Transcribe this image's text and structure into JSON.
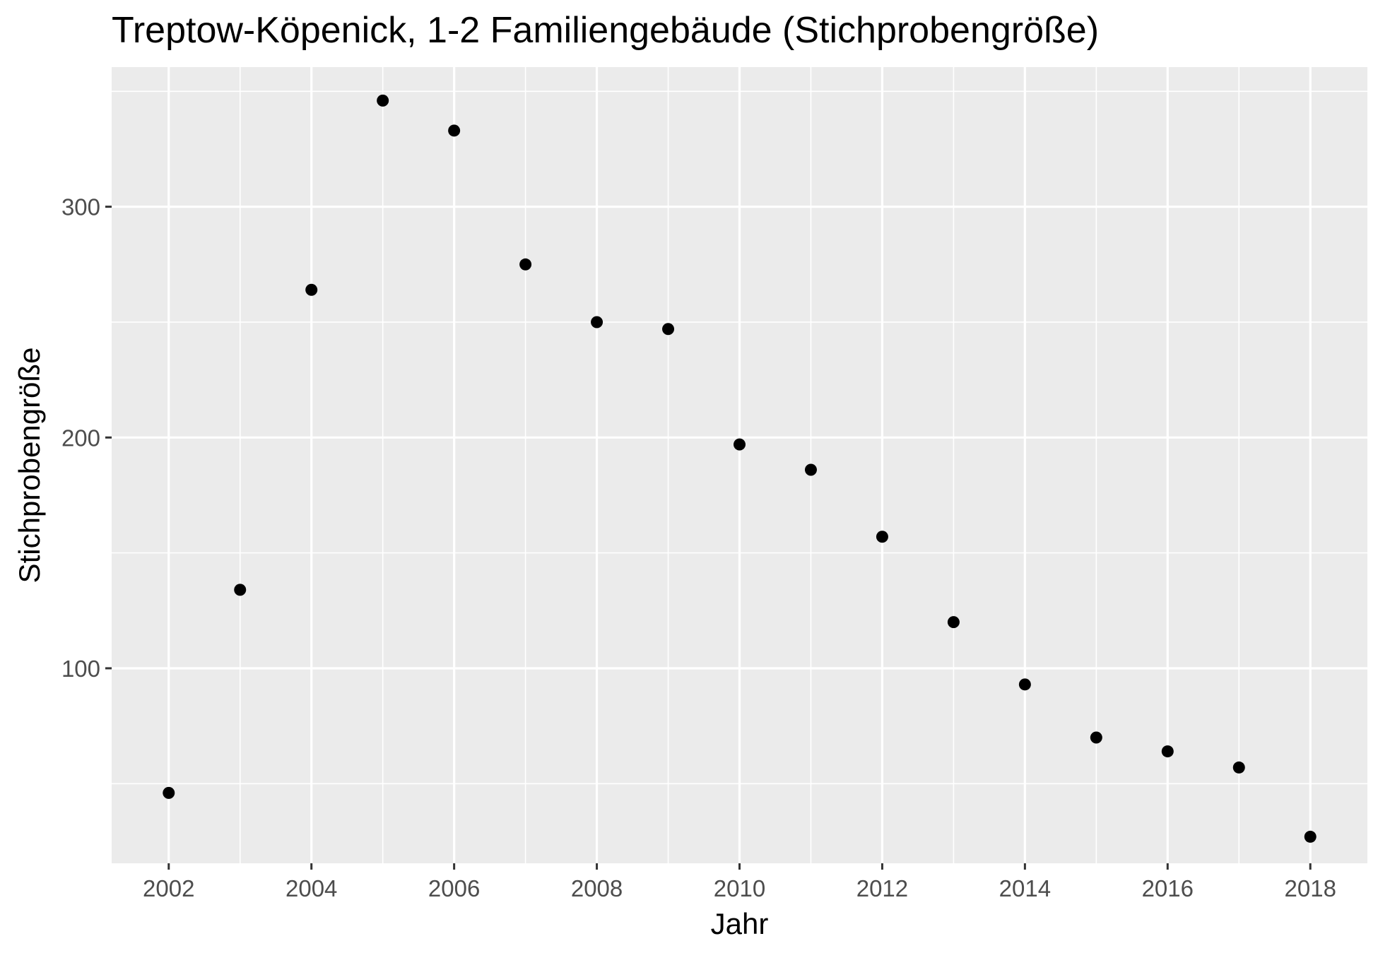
{
  "chart_data": {
    "type": "scatter",
    "title": "Treptow-Köpenick, 1-2 Familiengebäude (Stichprobengröße)",
    "xlabel": "Jahr",
    "ylabel": "Stichprobengröße",
    "x": [
      2002,
      2003,
      2004,
      2005,
      2006,
      2007,
      2008,
      2009,
      2010,
      2011,
      2012,
      2013,
      2014,
      2015,
      2016,
      2017,
      2018
    ],
    "y": [
      46,
      134,
      264,
      346,
      333,
      275,
      250,
      247,
      197,
      186,
      157,
      120,
      93,
      70,
      64,
      57,
      27
    ],
    "xlim": [
      2001.2,
      2018.8
    ],
    "ylim": [
      15.5,
      360.5
    ],
    "x_ticks": [
      "2002",
      "2004",
      "2006",
      "2008",
      "2010",
      "2012",
      "2014",
      "2016",
      "2018"
    ],
    "y_ticks": [
      "100",
      "200",
      "300"
    ],
    "grid": true,
    "panel_background": "#ebebeb",
    "grid_color": "#ffffff",
    "point_color": "#000000"
  }
}
